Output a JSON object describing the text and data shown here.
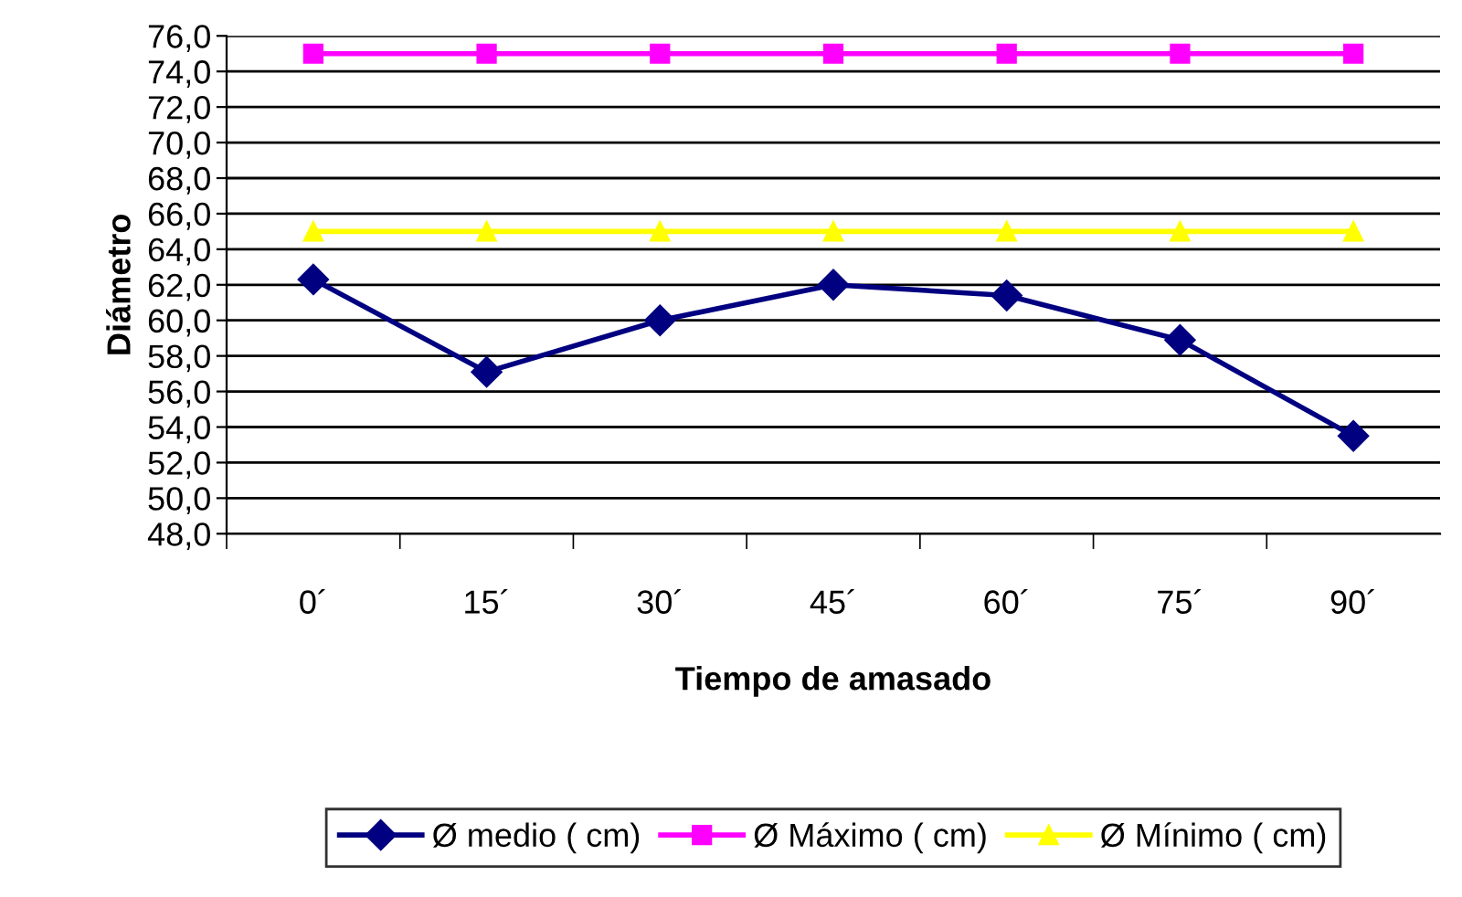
{
  "chart_data": {
    "type": "line",
    "xlabel": "Tiempo de amasado",
    "ylabel": "Diámetro",
    "categories": [
      "0´",
      "15´",
      "30´",
      "45´",
      "60´",
      "75´",
      "90´"
    ],
    "series": [
      {
        "name": "Ø medio ( cm)",
        "color": "#000080",
        "marker": "diamond",
        "values": [
          62.3,
          57.1,
          60.0,
          62.0,
          61.4,
          58.9,
          53.5
        ]
      },
      {
        "name": "Ø Máximo ( cm)",
        "color": "#ff00ff",
        "marker": "square",
        "values": [
          75.0,
          75.0,
          75.0,
          75.0,
          75.0,
          75.0,
          75.0
        ]
      },
      {
        "name": "Ø Mínimo ( cm)",
        "color": "#ffff00",
        "marker": "triangle",
        "values": [
          65.0,
          65.0,
          65.0,
          65.0,
          65.0,
          65.0,
          65.0
        ]
      }
    ],
    "ylim": [
      48,
      76
    ],
    "yticks": [
      {
        "value": 48,
        "label": "48,0"
      },
      {
        "value": 50,
        "label": "50,0"
      },
      {
        "value": 52,
        "label": "52,0"
      },
      {
        "value": 54,
        "label": "54,0"
      },
      {
        "value": 56,
        "label": "56,0"
      },
      {
        "value": 58,
        "label": "58,0"
      },
      {
        "value": 60,
        "label": "60,0"
      },
      {
        "value": 62,
        "label": "62,0"
      },
      {
        "value": 64,
        "label": "64,0"
      },
      {
        "value": 66,
        "label": "66,0"
      },
      {
        "value": 68,
        "label": "68,0"
      },
      {
        "value": 70,
        "label": "70,0"
      },
      {
        "value": 72,
        "label": "72,0"
      },
      {
        "value": 74,
        "label": "74,0"
      },
      {
        "value": 76,
        "label": "76,0"
      }
    ],
    "grid": "y",
    "legend": "bottom",
    "line_style": "solid"
  }
}
